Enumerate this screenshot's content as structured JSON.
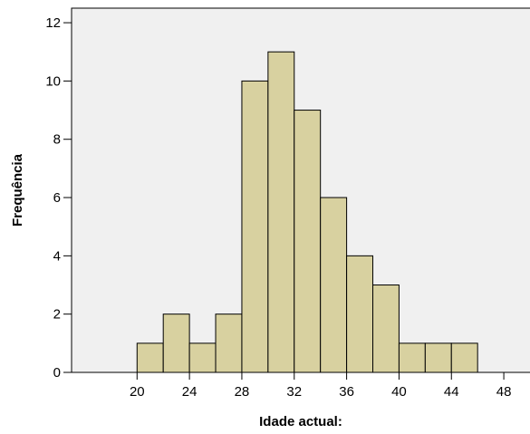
{
  "chart_data": {
    "type": "bar",
    "subtype": "histogram",
    "title": "",
    "xlabel": "Idade actual:",
    "ylabel": "Frequência",
    "xlim": [
      15,
      50
    ],
    "ylim": [
      0,
      12.5
    ],
    "bin_width": 2,
    "bins": [
      {
        "start": 20,
        "end": 22,
        "value": 1
      },
      {
        "start": 22,
        "end": 24,
        "value": 2
      },
      {
        "start": 24,
        "end": 26,
        "value": 1
      },
      {
        "start": 26,
        "end": 28,
        "value": 2
      },
      {
        "start": 28,
        "end": 30,
        "value": 10
      },
      {
        "start": 30,
        "end": 32,
        "value": 11
      },
      {
        "start": 32,
        "end": 34,
        "value": 9
      },
      {
        "start": 34,
        "end": 36,
        "value": 6
      },
      {
        "start": 36,
        "end": 38,
        "value": 4
      },
      {
        "start": 38,
        "end": 40,
        "value": 3
      },
      {
        "start": 40,
        "end": 42,
        "value": 1
      },
      {
        "start": 42,
        "end": 44,
        "value": 1
      },
      {
        "start": 44,
        "end": 46,
        "value": 1
      }
    ],
    "x_ticks": [
      20,
      24,
      28,
      32,
      36,
      40,
      44,
      48
    ],
    "y_ticks": [
      0,
      2,
      4,
      6,
      8,
      10,
      12
    ],
    "grid": false,
    "legend": "none",
    "colors": {
      "plot_background": "#f0f0f0",
      "bar_fill": "#d8d1a0",
      "bar_stroke": "#000000"
    }
  }
}
